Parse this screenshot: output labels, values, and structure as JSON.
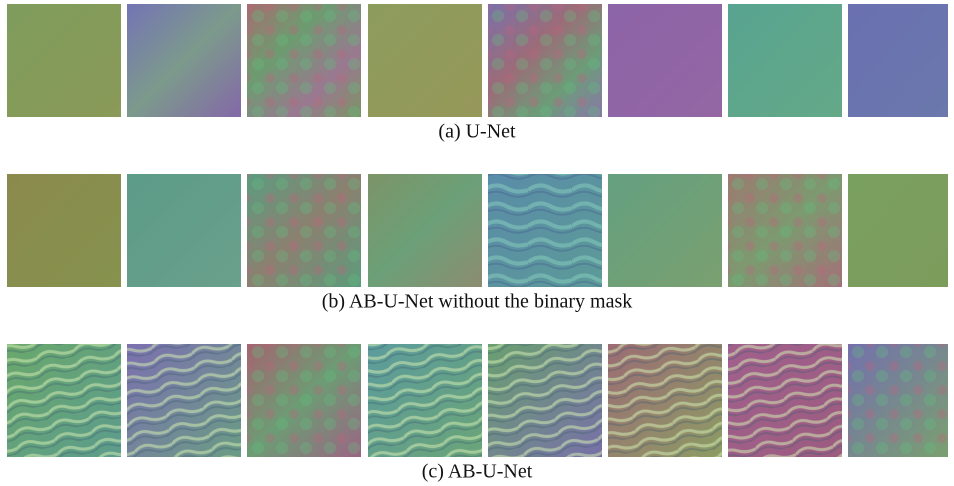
{
  "figures": [
    {
      "caption": "(a)  U-Net"
    },
    {
      "caption": "(b)  AB-U-Net without the binary mask"
    },
    {
      "caption": "(c)  AB-U-Net"
    }
  ]
}
